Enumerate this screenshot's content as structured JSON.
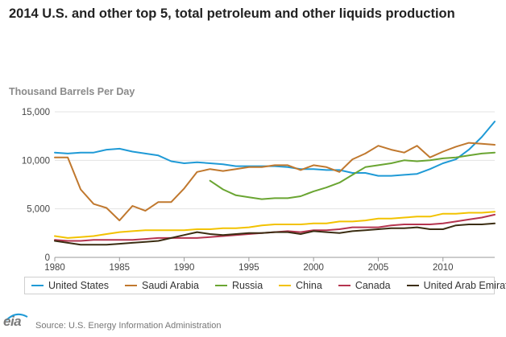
{
  "header": {
    "title": "2014 U.S. and other top 5, total petroleum and other liquids production",
    "units_label": "Thousand Barrels Per Day"
  },
  "source": {
    "logo_text": "eia",
    "text": "Source: U.S. Energy Information Administration"
  },
  "chart_data": {
    "type": "line",
    "title": "2014 U.S. and other top 5, total petroleum and other liquids production",
    "ylabel": "Thousand Barrels Per Day",
    "xlabel": "",
    "xlim": [
      1980,
      2014
    ],
    "ylim": [
      0,
      15000
    ],
    "x_ticks": [
      1980,
      1985,
      1990,
      1995,
      2000,
      2005,
      2010
    ],
    "x_tick_labels": [
      "1980",
      "1985",
      "1990",
      "1995",
      "2000",
      "2005",
      "2010"
    ],
    "y_ticks": [
      0,
      5000,
      10000,
      15000
    ],
    "y_tick_labels": [
      "0",
      "5,000",
      "10,000",
      "15,000"
    ],
    "grid": true,
    "legend_position": "bottom",
    "series": [
      {
        "name": "United States",
        "color": "#1f9ad6",
        "x": [
          1980,
          1981,
          1982,
          1983,
          1984,
          1985,
          1986,
          1987,
          1988,
          1989,
          1990,
          1991,
          1992,
          1993,
          1994,
          1995,
          1996,
          1997,
          1998,
          1999,
          2000,
          2001,
          2002,
          2003,
          2004,
          2005,
          2006,
          2007,
          2008,
          2009,
          2010,
          2011,
          2012,
          2013,
          2014
        ],
        "values": [
          10800,
          10700,
          10800,
          10800,
          11100,
          11200,
          10900,
          10700,
          10500,
          9900,
          9700,
          9800,
          9700,
          9600,
          9400,
          9400,
          9400,
          9400,
          9300,
          9100,
          9100,
          9000,
          9000,
          8700,
          8700,
          8400,
          8400,
          8500,
          8600,
          9100,
          9700,
          10100,
          11100,
          12400,
          14000
        ]
      },
      {
        "name": "Saudi Arabia",
        "color": "#c0782e",
        "x": [
          1980,
          1981,
          1982,
          1983,
          1984,
          1985,
          1986,
          1987,
          1988,
          1989,
          1990,
          1991,
          1992,
          1993,
          1994,
          1995,
          1996,
          1997,
          1998,
          1999,
          2000,
          2001,
          2002,
          2003,
          2004,
          2005,
          2006,
          2007,
          2008,
          2009,
          2010,
          2011,
          2012,
          2013,
          2014
        ],
        "values": [
          10300,
          10300,
          7000,
          5500,
          5100,
          3800,
          5300,
          4800,
          5700,
          5700,
          7100,
          8800,
          9100,
          8900,
          9100,
          9300,
          9300,
          9500,
          9500,
          9000,
          9500,
          9300,
          8800,
          10100,
          10700,
          11500,
          11100,
          10800,
          11500,
          10300,
          10900,
          11400,
          11800,
          11700,
          11600
        ]
      },
      {
        "name": "Russia",
        "color": "#6aa532",
        "x": [
          1992,
          1993,
          1994,
          1995,
          1996,
          1997,
          1998,
          1999,
          2000,
          2001,
          2002,
          2003,
          2004,
          2005,
          2006,
          2007,
          2008,
          2009,
          2010,
          2011,
          2012,
          2013,
          2014
        ],
        "values": [
          7900,
          7000,
          6400,
          6200,
          6000,
          6100,
          6100,
          6300,
          6800,
          7200,
          7700,
          8500,
          9300,
          9500,
          9700,
          10000,
          9900,
          10000,
          10200,
          10300,
          10500,
          10700,
          10800
        ]
      },
      {
        "name": "China",
        "color": "#f2c200",
        "x": [
          1980,
          1981,
          1982,
          1983,
          1984,
          1985,
          1986,
          1987,
          1988,
          1989,
          1990,
          1991,
          1992,
          1993,
          1994,
          1995,
          1996,
          1997,
          1998,
          1999,
          2000,
          2001,
          2002,
          2003,
          2004,
          2005,
          2006,
          2007,
          2008,
          2009,
          2010,
          2011,
          2012,
          2013,
          2014
        ],
        "values": [
          2200,
          2000,
          2100,
          2200,
          2400,
          2600,
          2700,
          2800,
          2800,
          2800,
          2800,
          2900,
          2900,
          3000,
          3000,
          3100,
          3300,
          3400,
          3400,
          3400,
          3500,
          3500,
          3700,
          3700,
          3800,
          4000,
          4000,
          4100,
          4200,
          4200,
          4500,
          4500,
          4600,
          4600,
          4700
        ]
      },
      {
        "name": "Canada",
        "color": "#b5344f",
        "x": [
          1980,
          1981,
          1982,
          1983,
          1984,
          1985,
          1986,
          1987,
          1988,
          1989,
          1990,
          1991,
          1992,
          1993,
          1994,
          1995,
          1996,
          1997,
          1998,
          1999,
          2000,
          2001,
          2002,
          2003,
          2004,
          2005,
          2006,
          2007,
          2008,
          2009,
          2010,
          2011,
          2012,
          2013,
          2014
        ],
        "values": [
          1800,
          1700,
          1700,
          1800,
          1800,
          1800,
          1800,
          1900,
          2000,
          2000,
          2000,
          2000,
          2100,
          2200,
          2300,
          2400,
          2500,
          2600,
          2700,
          2600,
          2800,
          2800,
          2900,
          3100,
          3100,
          3100,
          3300,
          3400,
          3400,
          3400,
          3500,
          3700,
          3900,
          4100,
          4400
        ]
      },
      {
        "name": "United Arab Emirates",
        "color": "#3b2d12",
        "x": [
          1980,
          1981,
          1982,
          1983,
          1984,
          1985,
          1986,
          1987,
          1988,
          1989,
          1990,
          1991,
          1992,
          1993,
          1994,
          1995,
          1996,
          1997,
          1998,
          1999,
          2000,
          2001,
          2002,
          2003,
          2004,
          2005,
          2006,
          2007,
          2008,
          2009,
          2010,
          2011,
          2012,
          2013,
          2014
        ],
        "values": [
          1700,
          1500,
          1300,
          1300,
          1300,
          1400,
          1500,
          1600,
          1700,
          2000,
          2300,
          2600,
          2400,
          2300,
          2400,
          2500,
          2500,
          2600,
          2600,
          2400,
          2700,
          2600,
          2500,
          2700,
          2800,
          2900,
          3000,
          3000,
          3100,
          2900,
          2900,
          3300,
          3400,
          3400,
          3500
        ]
      }
    ]
  }
}
